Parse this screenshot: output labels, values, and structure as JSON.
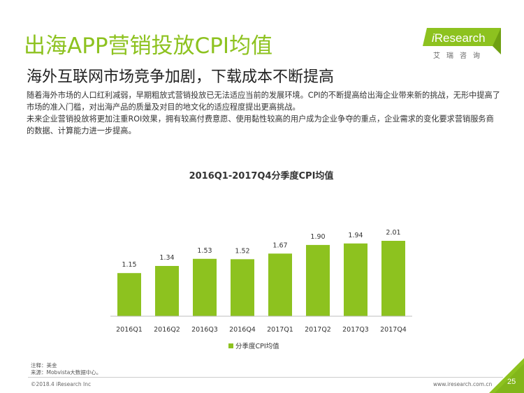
{
  "header": {
    "title": "出海APP营销投放CPI均值",
    "subtitle": "海外互联网市场竞争加剧，下载成本不断提高"
  },
  "logo": {
    "brand_prefix": "i",
    "brand_main": "Research",
    "tagline": "艾瑞咨询",
    "brand_color": "#8dc21f"
  },
  "body": {
    "paragraph_1": "随着海外市场的人口红利减弱，早期粗放式营销投放已无法适应当前的发展环境。CPI的不断提高给出海企业带来新的挑战，无形中提高了市场的准入门槛，对出海产品的质量及对目的地文化的适应程度提出更高挑战。",
    "paragraph_2": "未来企业营销投放将更加注重ROI效果，拥有较高付费意愿、使用黏性较高的用户成为企业争夺的重点，企业需求的变化要求营销服务商的数据、计算能力进一步提高。"
  },
  "chart_data": {
    "type": "bar",
    "title": "2016Q1-2017Q4分季度CPI均值",
    "categories": [
      "2016Q1",
      "2016Q2",
      "2016Q3",
      "2016Q4",
      "2017Q1",
      "2017Q2",
      "2017Q3",
      "2017Q4"
    ],
    "series": [
      {
        "name": "分季度CPI均值",
        "values": [
          1.15,
          1.34,
          1.53,
          1.52,
          1.67,
          1.9,
          1.94,
          2.01
        ],
        "color": "#8dc21f"
      }
    ],
    "data_labels": [
      "1.15",
      "1.34",
      "1.53",
      "1.52",
      "1.67",
      "1.90",
      "1.94",
      "2.01"
    ],
    "ylim": [
      0,
      2.01
    ],
    "y_axis_visible": false,
    "grid": false,
    "legend_position": "bottom"
  },
  "footer": {
    "note_1": "注释：美金",
    "note_2": "来源：Mobvista大数据中心。",
    "copyright": "©2018.4 iResearch Inc",
    "website": "www.iresearch.com.cn",
    "page_number": "25",
    "accent_color": "#8dc21f"
  }
}
